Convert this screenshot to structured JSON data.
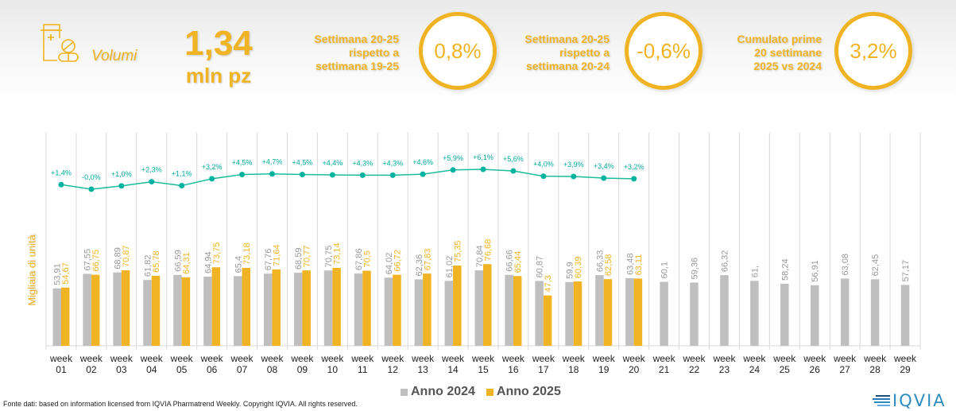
{
  "header": {
    "icon": "pill-bottle-icon",
    "category_label": "Volumi",
    "kpi_value": "1,34",
    "kpi_unit": "mln pz",
    "stats": [
      {
        "label_lines": [
          "Settimana 20-25",
          "rispetto a",
          "settimana 19-25"
        ],
        "value": "0,8%"
      },
      {
        "label_lines": [
          "Settimana 20-25",
          "rispetto a",
          "settimana 20-24"
        ],
        "value": "-0,6%"
      },
      {
        "label_lines": [
          "Cumulato prime",
          "20 settimane",
          "2025 vs 2024"
        ],
        "value": "3,2%"
      }
    ]
  },
  "colors": {
    "accent": "#F0B323",
    "series_2024": "#BFBFBF",
    "series_2025": "#F0B323",
    "growth_line": "#1ABC9C",
    "gridline": "#D9D9D9"
  },
  "chart_data": {
    "type": "bar",
    "title": "",
    "xlabel": "",
    "ylabel": "Migliaia di unità",
    "ylim": [
      0,
      200
    ],
    "grid": "vertical",
    "legend_position": "bottom",
    "categories": [
      "week 01",
      "week 02",
      "week 03",
      "week 04",
      "week 05",
      "week 06",
      "week 07",
      "week 08",
      "week 09",
      "week 10",
      "week 11",
      "week 12",
      "week 13",
      "week 14",
      "week 15",
      "week 16",
      "week 17",
      "week 18",
      "week 19",
      "week 20",
      "week 21",
      "week 22",
      "week 23",
      "week 24",
      "week 25",
      "week 26",
      "week 27",
      "week 28",
      "week 29"
    ],
    "series": [
      {
        "name": "Anno 2024",
        "values": [
          53.91,
          67.55,
          68.89,
          61.82,
          66.59,
          64.94,
          65.4,
          67.76,
          68.59,
          70.75,
          67.86,
          64.02,
          62.36,
          61.02,
          70.84,
          66.66,
          60.87,
          59.9,
          66.33,
          63.48,
          60.1,
          59.36,
          66.32,
          61,
          58.24,
          56.91,
          63.08,
          62.45,
          57.17
        ],
        "labels": [
          "53,91",
          "67,55",
          "68,89",
          "61,82",
          "66,59",
          "64,94",
          "65,4",
          "67,76",
          "68,59",
          "70,75",
          "67,86",
          "64,02",
          "62,36",
          "61,02",
          "70,84",
          "66,66",
          "60,87",
          "59,9",
          "66,33",
          "63,48",
          "60,1",
          "59,36",
          "66,32",
          "61,",
          "58,24",
          "56,91",
          "63,08",
          "62,45",
          "57,17"
        ]
      },
      {
        "name": "Anno 2025",
        "values": [
          54.67,
          66.75,
          70.87,
          65.78,
          64.31,
          73.75,
          73.18,
          71.64,
          70.77,
          73.14,
          70.5,
          66.72,
          67.83,
          75.35,
          76.68,
          65.44,
          47.3,
          60.39,
          62.58,
          63.11
        ],
        "labels": [
          "54,67",
          "66,75",
          "70,87",
          "65,78",
          "64,31",
          "73,75",
          "73,18",
          "71,64",
          "70,77",
          "73,14",
          "70,5",
          "66,72",
          "67,83",
          "75,35",
          "76,68",
          "65,44",
          "47,3",
          "60,39",
          "62,58",
          "63,11"
        ]
      }
    ],
    "growth_line": {
      "name": "Cumulative growth 2025 vs 2024",
      "unit": "%",
      "values": [
        1.4,
        -0.0,
        1.0,
        2.3,
        1.1,
        3.2,
        4.5,
        4.7,
        4.5,
        4.4,
        4.3,
        4.3,
        4.6,
        5.9,
        6.1,
        5.6,
        4.0,
        3.9,
        3.4,
        3.2
      ],
      "labels": [
        "+1,4%",
        "-0,0%",
        "+1,0%",
        "+2,3%",
        "+1,1%",
        "+3,2%",
        "+4,5%",
        "+4,7%",
        "+4,5%",
        "+4,4%",
        "+4,3%",
        "+4,3%",
        "+4,6%",
        "+5,9%",
        "+6,1%",
        "+5,6%",
        "+4,0%",
        "+3,9%",
        "+3,4%",
        "+3,2%"
      ]
    }
  },
  "legend": [
    {
      "label": "Anno 2024"
    },
    {
      "label": "Anno 2025"
    }
  ],
  "footer": {
    "source": "Fonte dati: based on information licensed from IQVIA Pharmatrend Weekly. Copyright IQVIA. All rights reserved.",
    "logo_text": "IQVIA"
  }
}
